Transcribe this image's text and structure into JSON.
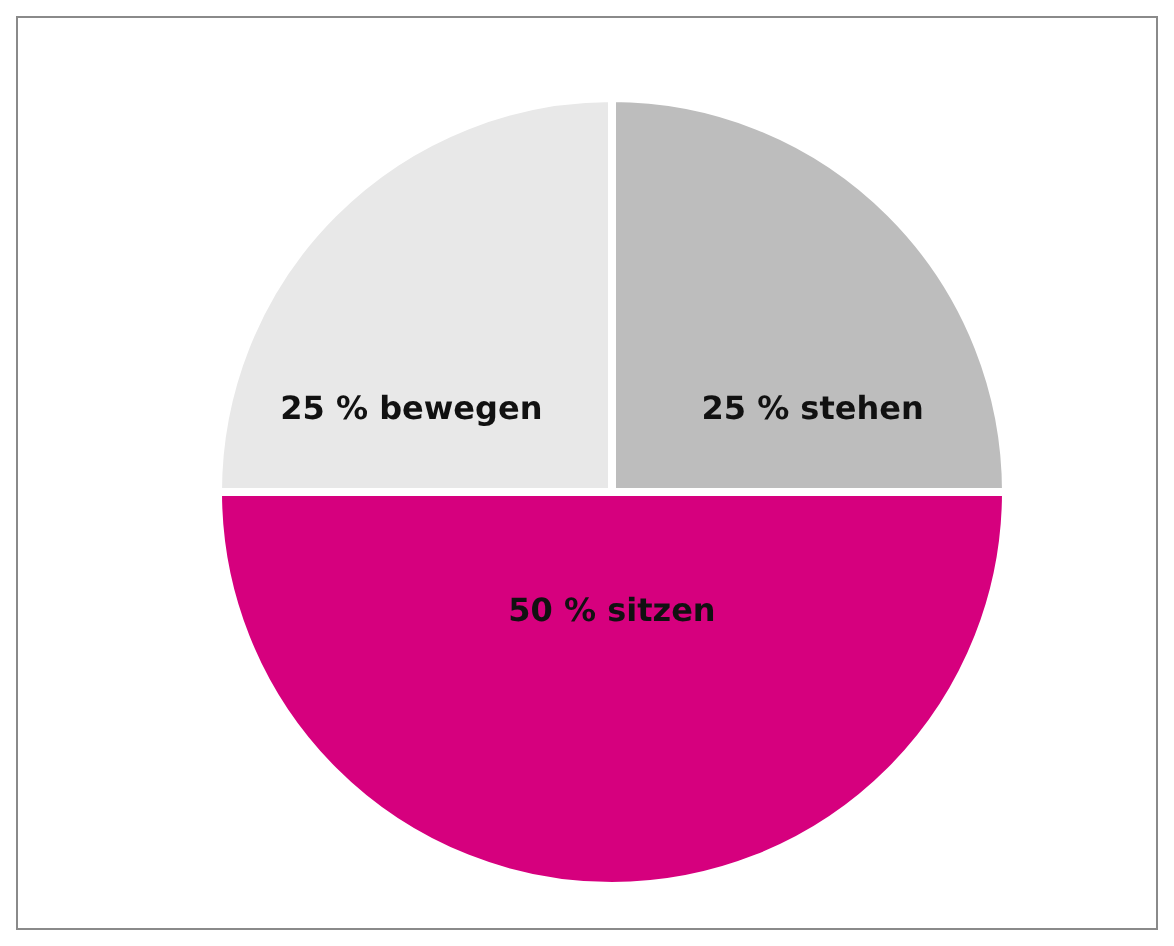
{
  "chart_data": {
    "type": "pie",
    "categories": [
      "25 % stehen",
      "50 % sitzen",
      "25 % bewegen"
    ],
    "values": [
      25,
      50,
      25
    ],
    "colors": [
      "#bdbdbd",
      "#d6007e",
      "#e8e8e8"
    ]
  }
}
